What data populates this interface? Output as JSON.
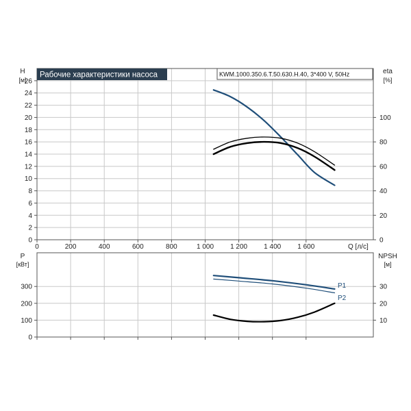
{
  "title_badge": "Рабочие характеристики насоса",
  "model_label": "KWM.1000.350.6.T.50.630.H.40, 3*400 V, 50Hz",
  "colors": {
    "blue": "#1f4e79",
    "black": "#000000",
    "badge_bg": "#2b3e50",
    "grid": "#c8c8c8"
  },
  "top_axes": {
    "left_label": "H",
    "left_unit": "[м]",
    "right_label": "eta",
    "right_unit": "[%]",
    "x_label": "Q [л/с]"
  },
  "bottom_axes": {
    "left_label": "P",
    "left_unit": "[кВт]",
    "right_label": "NPSH",
    "right_unit": "[м]"
  },
  "chart_data": [
    {
      "type": "line",
      "panel": "top",
      "x": {
        "range": [
          0,
          2000
        ],
        "ticks": [
          0,
          200,
          400,
          600,
          800,
          1000,
          1200,
          1400,
          1600
        ],
        "tick_labels": [
          "0",
          "200",
          "400",
          "600",
          "800",
          "1 000",
          "1 200",
          "1 400",
          "1 600"
        ]
      },
      "y_left": {
        "range": [
          0,
          28
        ],
        "ticks": [
          0,
          2,
          4,
          6,
          8,
          10,
          12,
          14,
          16,
          18,
          20,
          22,
          24,
          26
        ]
      },
      "y_right": {
        "range": [
          0,
          140
        ],
        "ticks": [
          0,
          20,
          40,
          60,
          80,
          100
        ]
      },
      "grid": true,
      "series": [
        {
          "axis": "left",
          "color": "#1f4e79",
          "width": 2.2,
          "x": [
            1050,
            1150,
            1250,
            1350,
            1450,
            1550,
            1650,
            1770
          ],
          "y": [
            24.5,
            23.4,
            21.7,
            19.5,
            16.8,
            13.9,
            11.0,
            8.9
          ]
        },
        {
          "axis": "right",
          "color": "#000000",
          "width": 1.3,
          "x": [
            1050,
            1150,
            1250,
            1350,
            1450,
            1550,
            1650,
            1770
          ],
          "y": [
            74,
            80,
            83,
            84,
            83,
            79,
            72,
            61
          ]
        },
        {
          "axis": "right",
          "color": "#000000",
          "width": 2.4,
          "x": [
            1050,
            1150,
            1250,
            1350,
            1450,
            1550,
            1650,
            1770
          ],
          "y": [
            70,
            76,
            79,
            80,
            79,
            75,
            68,
            57
          ]
        }
      ]
    },
    {
      "type": "line",
      "panel": "bottom",
      "x": {
        "range": [
          0,
          2000
        ],
        "ticks": [
          0,
          200,
          400,
          600,
          800,
          1000,
          1200,
          1400,
          1600
        ]
      },
      "y_left": {
        "range": [
          0,
          500
        ],
        "ticks": [
          0,
          100,
          200,
          300
        ]
      },
      "y_right": {
        "range": [
          0,
          50
        ],
        "ticks": [
          10,
          20,
          30
        ]
      },
      "grid": true,
      "series": [
        {
          "name": "P1",
          "axis": "left",
          "color": "#1f4e79",
          "width": 2.2,
          "x": [
            1050,
            1200,
            1400,
            1600,
            1770
          ],
          "y": [
            365,
            352,
            334,
            310,
            285
          ]
        },
        {
          "name": "P2",
          "axis": "left",
          "color": "#1f4e79",
          "width": 1.2,
          "x": [
            1050,
            1200,
            1400,
            1600,
            1770
          ],
          "y": [
            344,
            332,
            315,
            290,
            262
          ]
        },
        {
          "axis": "right",
          "color": "#000000",
          "width": 2.2,
          "x": [
            1050,
            1150,
            1250,
            1350,
            1450,
            1550,
            1650,
            1770
          ],
          "y": [
            13.0,
            10.5,
            9.3,
            9.1,
            9.8,
            11.7,
            14.8,
            20.0
          ]
        }
      ]
    }
  ]
}
